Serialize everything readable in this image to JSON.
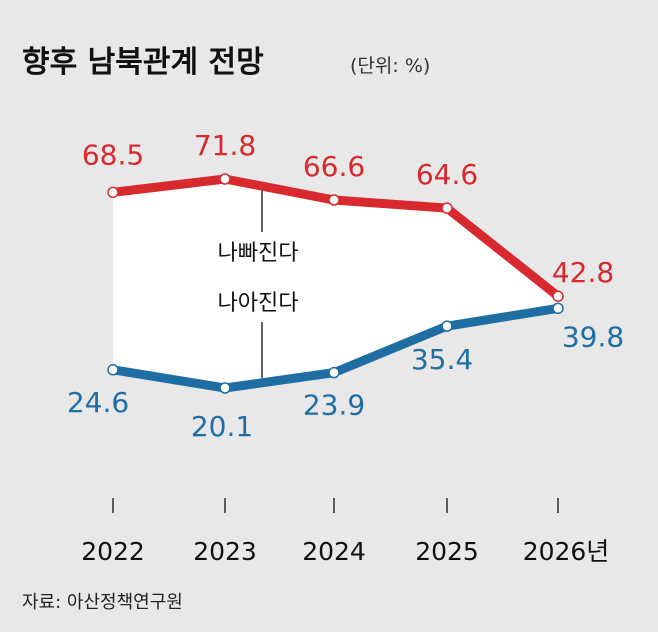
{
  "title": "향후 남북관계 전망",
  "unit_label": "(단위: %)",
  "source": "자료: 아산정책연구원",
  "chart_data": {
    "type": "line",
    "title": "향후 남북관계 전망",
    "unit": "%",
    "categories": [
      "2022",
      "2023",
      "2024",
      "2025",
      "2026년"
    ],
    "series": [
      {
        "name": "나빠진다",
        "color": "#d7292e",
        "values": [
          68.5,
          71.8,
          66.6,
          64.6,
          42.8
        ]
      },
      {
        "name": "나아진다",
        "color": "#1f6ea3",
        "values": [
          24.6,
          20.1,
          23.9,
          35.4,
          39.8
        ]
      }
    ],
    "annotations": [
      "나빠진다",
      "나아진다"
    ],
    "xlabel": "",
    "ylabel": "",
    "grid": false,
    "legend": "none"
  }
}
